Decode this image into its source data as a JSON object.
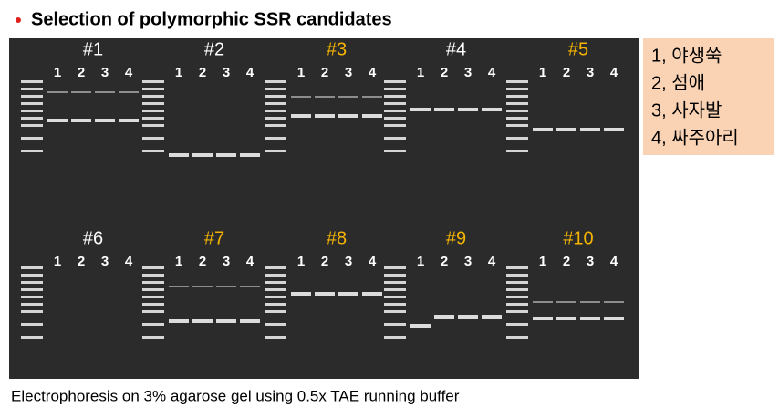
{
  "header": {
    "title": "Selection of polymorphic SSR candidates"
  },
  "panels": [
    {
      "label": "#1",
      "highlight": false,
      "lanes": [
        "1",
        "2",
        "3",
        "4"
      ]
    },
    {
      "label": "#2",
      "highlight": false,
      "lanes": [
        "1",
        "2",
        "3",
        "4"
      ]
    },
    {
      "label": "#3",
      "highlight": true,
      "lanes": [
        "1",
        "2",
        "3",
        "4"
      ]
    },
    {
      "label": "#4",
      "highlight": false,
      "lanes": [
        "1",
        "2",
        "3",
        "4"
      ]
    },
    {
      "label": "#5",
      "highlight": true,
      "lanes": [
        "1",
        "2",
        "3",
        "4"
      ]
    },
    {
      "label": "#6",
      "highlight": false,
      "lanes": [
        "1",
        "2",
        "3",
        "4"
      ]
    },
    {
      "label": "#7",
      "highlight": true,
      "lanes": [
        "1",
        "2",
        "3",
        "4"
      ]
    },
    {
      "label": "#8",
      "highlight": true,
      "lanes": [
        "1",
        "2",
        "3",
        "4"
      ]
    },
    {
      "label": "#9",
      "highlight": true,
      "lanes": [
        "1",
        "2",
        "3",
        "4"
      ]
    },
    {
      "label": "#10",
      "highlight": true,
      "lanes": [
        "1",
        "2",
        "3",
        "4"
      ]
    }
  ],
  "legend": [
    "1, 야생쑥",
    "2, 섬애",
    "3, 사자발",
    "4, 싸주아리"
  ],
  "caption": "Electrophoresis on 3% agarose gel using 0.5x TAE running buffer"
}
